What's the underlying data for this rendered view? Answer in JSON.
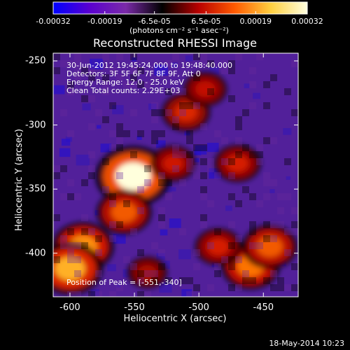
{
  "chart_data": {
    "type": "heatmap",
    "title": "Reconstructed RHESSI Image",
    "xlabel": "Heliocentric X (arcsec)",
    "ylabel": "Heliocentric Y (arcsec)",
    "xlim": [
      -613,
      -423
    ],
    "ylim": [
      -434,
      -244
    ],
    "xticks": [
      "-600",
      "-550",
      "-500",
      "-450"
    ],
    "xtick_values": [
      -600,
      -550,
      -500,
      -450
    ],
    "yticks": [
      "-250",
      "-300",
      "-350",
      "-400"
    ],
    "ytick_values": [
      -250,
      -300,
      -350,
      -400
    ],
    "colorbar": {
      "ticks": [
        "-0.00032",
        "-0.00019",
        "-6.5e-05",
        "6.5e-05",
        "0.00019",
        "0.00032"
      ],
      "tick_values": [
        -0.00032,
        -0.00019,
        -6.5e-05,
        6.5e-05,
        0.00019,
        0.00032
      ],
      "units": "(photons cm⁻² s⁻¹ asec⁻²)",
      "colors": [
        "#0000ff",
        "#5a00d0",
        "#7a2aa8",
        "#000000",
        "#b80000",
        "#ff5a00",
        "#ffd040",
        "#ffffe0"
      ]
    },
    "info_lines": [
      "30-Jun-2012 19:45:24.000 to 19:48:40.000",
      "Detectors: 3F 5F 6F 7F 8F 9F, Att 0",
      "Energy Range: 12.0 - 25.0 keV",
      "Clean    Total counts: 2.29E+03"
    ],
    "peak_label": "Position of Peak = [-551,-340]",
    "peak": [
      -551,
      -340
    ],
    "bright_regions": [
      {
        "x": -551,
        "y": -340,
        "value": 0.00032
      },
      {
        "x": -590,
        "y": -395,
        "value": 0.00024
      },
      {
        "x": -600,
        "y": -412,
        "value": 0.00026
      },
      {
        "x": -558,
        "y": -368,
        "value": 0.0002
      },
      {
        "x": -520,
        "y": -330,
        "value": 0.00014
      },
      {
        "x": -510,
        "y": -290,
        "value": 0.00016
      },
      {
        "x": -495,
        "y": -272,
        "value": 0.00013
      },
      {
        "x": -470,
        "y": -330,
        "value": 0.00015
      },
      {
        "x": -460,
        "y": -410,
        "value": 0.00022
      },
      {
        "x": -445,
        "y": -395,
        "value": 0.0002
      },
      {
        "x": -485,
        "y": -395,
        "value": 0.00015
      },
      {
        "x": -540,
        "y": -415,
        "value": 0.00011
      }
    ],
    "timestamp": "18-May-2014 10:23"
  }
}
